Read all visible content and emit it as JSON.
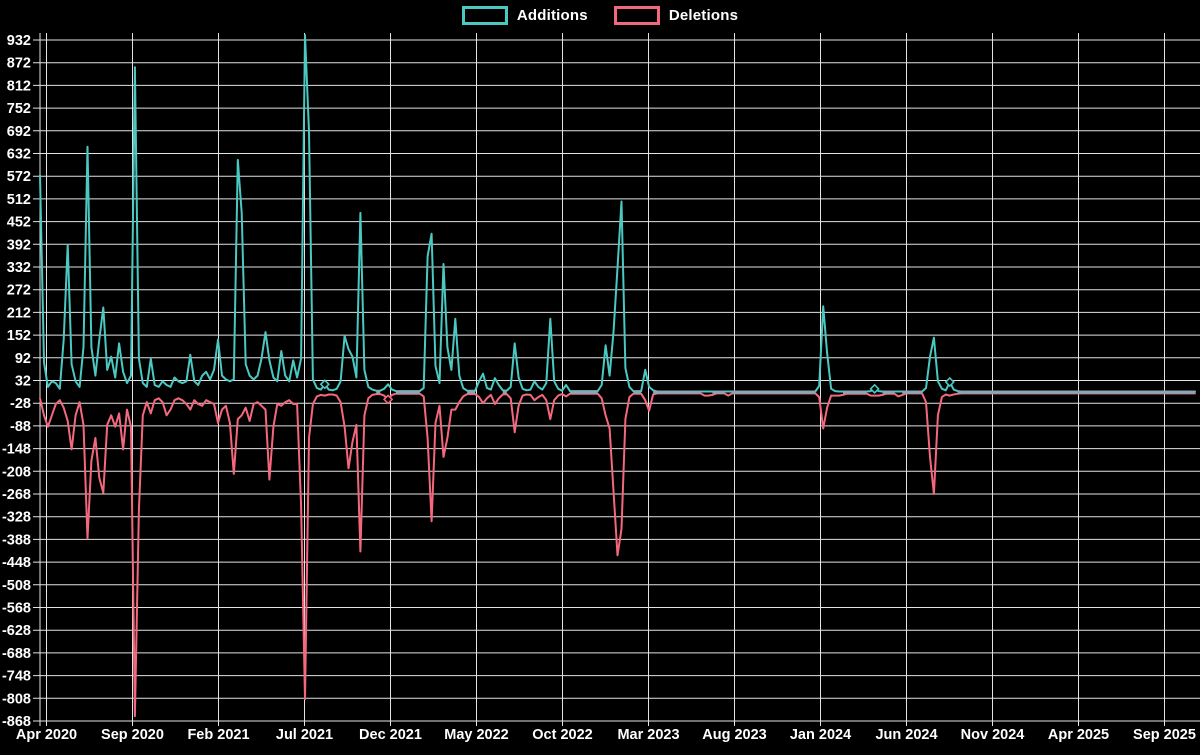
{
  "page": {
    "background_color": "#000000"
  },
  "legend": {
    "items": [
      {
        "label": "Additions",
        "color": "#4bc8c2"
      },
      {
        "label": "Deletions",
        "color": "#f4687e"
      }
    ]
  },
  "chart_data": {
    "type": "line",
    "title": "",
    "xlabel": "",
    "ylabel": "",
    "x_unit": "week",
    "x_tick_labels": [
      "Apr 2020",
      "Sep 2020",
      "Feb 2021",
      "Jul 2021",
      "Dec 2021",
      "May 2022",
      "Oct 2022",
      "Mar 2023",
      "Aug 2023",
      "Jan 2024",
      "Jun 2024",
      "Nov 2024",
      "Apr 2025",
      "Sep 2025"
    ],
    "y_ticks": [
      932,
      872,
      812,
      752,
      692,
      632,
      572,
      512,
      452,
      392,
      332,
      272,
      212,
      152,
      92,
      32,
      -28,
      -88,
      -148,
      -208,
      -268,
      -328,
      -388,
      -448,
      -508,
      -568,
      -628,
      -688,
      -748,
      -808,
      -868
    ],
    "ylim": [
      -868,
      932
    ],
    "grid": true,
    "grid_color": "#e3e3e3",
    "text_color": "#ffffff",
    "background_color": "#000000",
    "overlap_color": "#8ea4b2",
    "legend_position": "top-center",
    "series": [
      {
        "name": "Additions",
        "color": "#4bc8c2",
        "marker_weeks": [
          72,
          211,
          230
        ],
        "values": [
          575,
          80,
          15,
          30,
          25,
          10,
          140,
          390,
          75,
          30,
          15,
          120,
          650,
          120,
          45,
          140,
          225,
          60,
          95,
          40,
          130,
          55,
          25,
          45,
          860,
          90,
          25,
          15,
          90,
          20,
          15,
          30,
          20,
          15,
          40,
          30,
          25,
          30,
          100,
          30,
          20,
          45,
          55,
          35,
          60,
          140,
          45,
          35,
          30,
          35,
          615,
          475,
          75,
          45,
          35,
          45,
          90,
          160,
          85,
          40,
          30,
          110,
          45,
          30,
          85,
          40,
          90,
          945,
          690,
          35,
          12,
          8,
          22,
          8,
          6,
          10,
          30,
          150,
          115,
          95,
          40,
          475,
          60,
          15,
          8,
          5,
          5,
          10,
          22,
          8,
          4,
          4,
          4,
          4,
          4,
          4,
          4,
          12,
          360,
          420,
          70,
          25,
          340,
          120,
          60,
          195,
          45,
          12,
          5,
          5,
          5,
          30,
          50,
          12,
          8,
          38,
          20,
          6,
          5,
          15,
          130,
          40,
          10,
          6,
          8,
          30,
          15,
          8,
          25,
          195,
          30,
          10,
          5,
          20,
          4,
          4,
          4,
          4,
          4,
          4,
          4,
          4,
          20,
          125,
          45,
          160,
          330,
          505,
          65,
          15,
          4,
          4,
          4,
          60,
          15,
          6,
          3,
          3,
          3,
          3,
          3,
          3,
          3,
          3,
          3,
          3,
          3,
          3,
          3,
          3,
          3,
          3,
          3,
          3,
          3,
          3,
          3,
          3,
          3,
          3,
          3,
          3,
          3,
          3,
          3,
          3,
          3,
          3,
          3,
          3,
          3,
          3,
          3,
          3,
          3,
          3,
          3,
          18,
          228,
          105,
          10,
          4,
          3,
          3,
          3,
          3,
          3,
          3,
          3,
          3,
          4,
          10,
          4,
          3,
          3,
          3,
          3,
          3,
          3,
          3,
          3,
          3,
          3,
          3,
          12,
          95,
          145,
          30,
          10,
          6,
          28,
          8,
          4,
          3,
          3,
          3,
          3,
          3,
          3,
          3,
          3,
          3,
          3,
          3,
          3,
          3,
          3,
          3,
          3,
          3,
          3,
          3,
          3,
          3,
          3,
          3,
          3,
          3,
          3,
          3,
          3,
          3,
          3,
          3,
          3,
          3,
          3,
          3,
          3,
          3,
          3,
          3,
          3,
          3,
          3,
          3,
          3,
          3,
          3,
          3,
          3,
          3,
          3,
          3,
          3,
          3,
          3,
          3,
          3,
          3,
          3,
          3,
          3
        ]
      },
      {
        "name": "Deletions",
        "color": "#f4687e",
        "marker_weeks": [
          88
        ],
        "values": [
          -15,
          -60,
          -90,
          -60,
          -30,
          -20,
          -40,
          -75,
          -150,
          -60,
          -25,
          -85,
          -385,
          -180,
          -120,
          -225,
          -265,
          -85,
          -60,
          -90,
          -55,
          -150,
          -45,
          -90,
          -855,
          -310,
          -60,
          -25,
          -55,
          -20,
          -15,
          -25,
          -60,
          -45,
          -20,
          -15,
          -20,
          -30,
          -45,
          -20,
          -30,
          -35,
          -20,
          -25,
          -30,
          -80,
          -45,
          -35,
          -80,
          -215,
          -70,
          -60,
          -40,
          -75,
          -30,
          -25,
          -35,
          -45,
          -230,
          -90,
          -30,
          -35,
          -25,
          -20,
          -30,
          -30,
          -300,
          -810,
          -120,
          -30,
          -10,
          -6,
          -8,
          -5,
          -5,
          -8,
          -25,
          -90,
          -200,
          -130,
          -85,
          -420,
          -60,
          -15,
          -6,
          -4,
          -4,
          -8,
          -18,
          -6,
          -3,
          -3,
          -3,
          -3,
          -3,
          -3,
          -3,
          -10,
          -120,
          -340,
          -80,
          -35,
          -170,
          -120,
          -45,
          -45,
          -25,
          -10,
          -4,
          -4,
          -4,
          -12,
          -28,
          -15,
          -6,
          -30,
          -15,
          -5,
          -4,
          -15,
          -105,
          -35,
          -8,
          -5,
          -6,
          -20,
          -12,
          -6,
          -20,
          -70,
          -20,
          -8,
          -4,
          -10,
          -3,
          -3,
          -3,
          -3,
          -3,
          -3,
          -3,
          -3,
          -15,
          -60,
          -95,
          -260,
          -430,
          -360,
          -70,
          -12,
          -3,
          -3,
          -3,
          -20,
          -48,
          -5,
          -2,
          -2,
          -2,
          -2,
          -2,
          -2,
          -2,
          -2,
          -2,
          -2,
          -2,
          -2,
          -8,
          -8,
          -6,
          -2,
          -2,
          -2,
          -8,
          -2,
          -2,
          -2,
          -2,
          -2,
          -2,
          -2,
          -2,
          -2,
          -2,
          -2,
          -2,
          -2,
          -2,
          -2,
          -2,
          -2,
          -2,
          -2,
          -2,
          -2,
          -2,
          -12,
          -95,
          -40,
          -8,
          -8,
          -8,
          -6,
          -3,
          -3,
          -3,
          -3,
          -3,
          -3,
          -8,
          -8,
          -8,
          -6,
          -3,
          -3,
          -3,
          -10,
          -6,
          -2,
          -2,
          -2,
          -2,
          -2,
          -25,
          -170,
          -268,
          -60,
          -12,
          -5,
          -8,
          -5,
          -3,
          -2,
          -2,
          -2,
          -2,
          -2,
          -2,
          -2,
          -2,
          -2,
          -2,
          -2,
          -2,
          -2,
          -2,
          -2,
          -2,
          -2,
          -2,
          -2,
          -2,
          -2,
          -2,
          -2,
          -2,
          -2,
          -2,
          -2,
          -2,
          -2,
          -2,
          -2,
          -2,
          -2,
          -2,
          -2,
          -2,
          -2,
          -2,
          -2,
          -2,
          -2,
          -2,
          -2,
          -2,
          -2,
          -2,
          -2,
          -2,
          -2,
          -2,
          -2,
          -2,
          -2,
          -2,
          -2,
          -2,
          -2,
          -2,
          -2,
          -2
        ]
      }
    ]
  }
}
